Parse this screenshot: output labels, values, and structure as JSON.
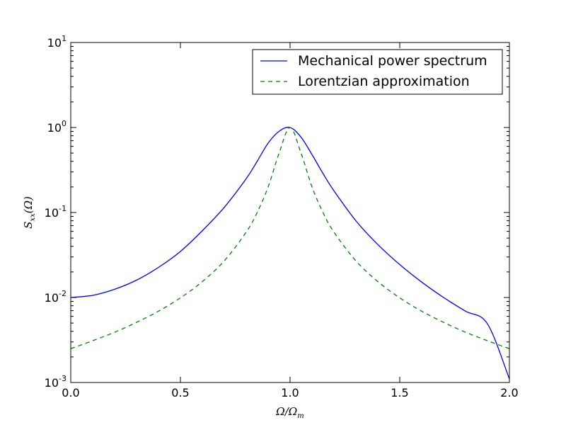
{
  "chart_data": {
    "type": "line",
    "title": "",
    "xlabel": "Ω/Ω",
    "xlabel_sub": "m",
    "ylabel": "S",
    "ylabel_sub": "xx",
    "ylabel_arg": "(Ω)",
    "xlim": [
      0.0,
      2.0
    ],
    "ylim": [
      0.001,
      10
    ],
    "yscale": "log",
    "grid": false,
    "legend_position": "top-right",
    "x_ticks": [
      "0.0",
      "0.5",
      "1.0",
      "1.5",
      "2.0"
    ],
    "y_ticks": [
      {
        "base": "10",
        "exp": "-3"
      },
      {
        "base": "10",
        "exp": "-2"
      },
      {
        "base": "10",
        "exp": "-1"
      },
      {
        "base": "10",
        "exp": "0"
      },
      {
        "base": "10",
        "exp": "1"
      }
    ],
    "series": [
      {
        "name": "Mechanical power spectrum",
        "color": "#0000ff",
        "dash": "solid",
        "x": [
          0.0,
          0.1,
          0.2,
          0.3,
          0.4,
          0.5,
          0.6,
          0.7,
          0.8,
          0.85,
          0.9,
          0.95,
          1.0,
          1.05,
          1.1,
          1.15,
          1.2,
          1.3,
          1.4,
          1.5,
          1.6,
          1.7,
          1.8,
          1.9,
          2.0
        ],
        "y": [
          0.01,
          0.0106,
          0.0125,
          0.016,
          0.0226,
          0.0348,
          0.061,
          0.115,
          0.25,
          0.4,
          0.655,
          0.902,
          1.0,
          0.769,
          0.48,
          0.288,
          0.18,
          0.08,
          0.042,
          0.0244,
          0.0152,
          0.01,
          0.0069,
          0.0049,
          0.0011
        ]
      },
      {
        "name": "Lorentzian approximation",
        "color": "#008000",
        "dash": "dashed",
        "x": [
          0.0,
          0.1,
          0.2,
          0.3,
          0.4,
          0.5,
          0.6,
          0.7,
          0.8,
          0.85,
          0.9,
          0.95,
          1.0,
          1.05,
          1.1,
          1.15,
          1.2,
          1.3,
          1.4,
          1.5,
          1.6,
          1.7,
          1.8,
          1.9,
          2.0
        ],
        "y": [
          0.0025,
          0.0031,
          0.0039,
          0.0051,
          0.0069,
          0.0099,
          0.0154,
          0.027,
          0.0588,
          0.1,
          0.2,
          0.5,
          1.0,
          0.5,
          0.2,
          0.1,
          0.0588,
          0.027,
          0.0154,
          0.0099,
          0.0069,
          0.0051,
          0.0039,
          0.0031,
          0.0025
        ]
      }
    ]
  }
}
